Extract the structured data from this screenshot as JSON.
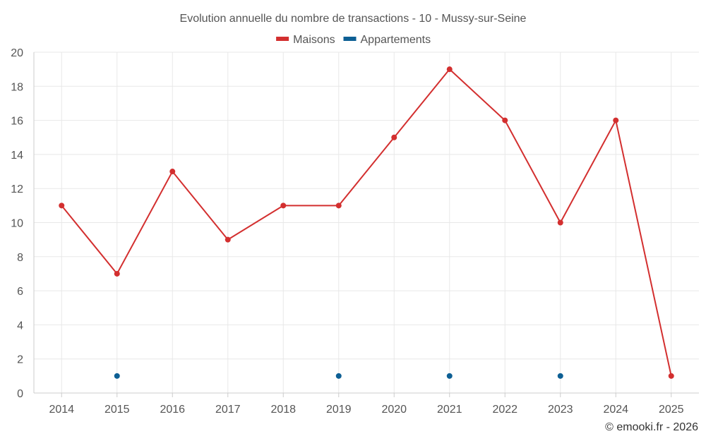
{
  "chart_data": {
    "type": "line",
    "title": "Evolution annuelle du nombre de transactions - 10 - Mussy-sur-Seine",
    "xlabel": "",
    "ylabel": "",
    "categories": [
      "2014",
      "2015",
      "2016",
      "2017",
      "2018",
      "2019",
      "2020",
      "2021",
      "2022",
      "2023",
      "2024",
      "2025"
    ],
    "ylim": [
      0,
      20
    ],
    "yticks": [
      "0",
      "2",
      "4",
      "6",
      "8",
      "10",
      "12",
      "14",
      "16",
      "18",
      "20"
    ],
    "grid": true,
    "legend_position": "top-center",
    "series": [
      {
        "name": "Maisons",
        "color": "#d32f2f",
        "connected": true,
        "values": [
          11,
          7,
          13,
          9,
          11,
          11,
          15,
          19,
          16,
          10,
          16,
          1
        ]
      },
      {
        "name": "Appartements",
        "color": "#0d5f94",
        "connected": false,
        "values": [
          null,
          1,
          null,
          null,
          null,
          1,
          null,
          1,
          null,
          1,
          null,
          null
        ]
      }
    ]
  },
  "footer": {
    "credit": "© emooki.fr - 2026"
  }
}
